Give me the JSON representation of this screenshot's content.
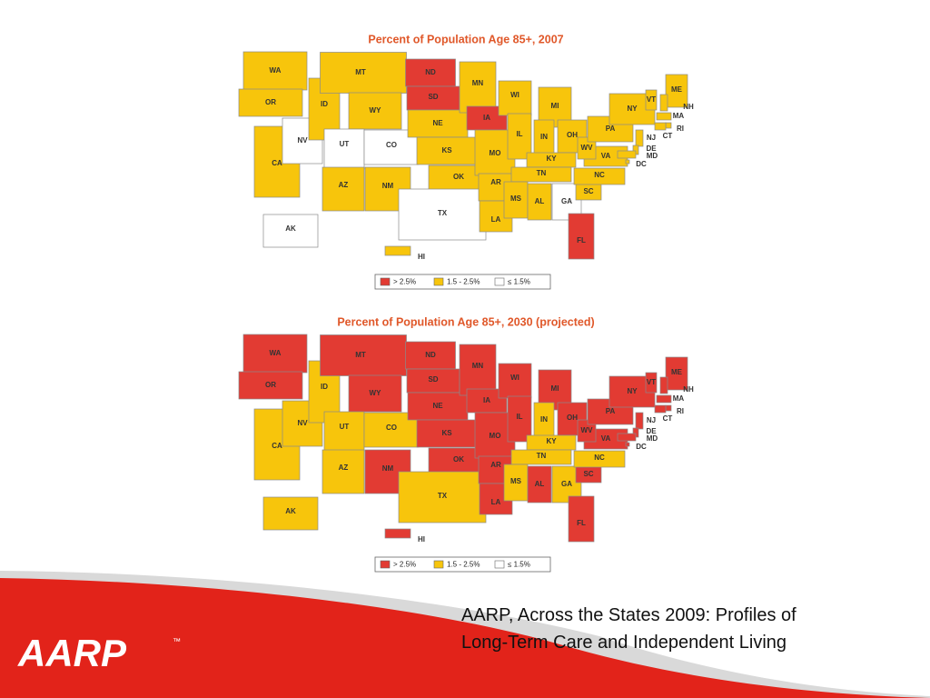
{
  "maps": [
    {
      "title": "Percent of Population Age 85+, 2007",
      "legend": [
        {
          "label": "> 2.5%",
          "color": "#e23b33"
        },
        {
          "label": "1.5 - 2.5%",
          "color": "#f7c50c"
        },
        {
          "label": "≤ 1.5%",
          "color": "#ffffff"
        }
      ],
      "states": [
        {
          "label": "WA",
          "color": "#f7c50c"
        },
        {
          "label": "OR",
          "color": "#f7c50c"
        },
        {
          "label": "CA",
          "color": "#f7c50c"
        },
        {
          "label": "NV",
          "color": "#ffffff"
        },
        {
          "label": "ID",
          "color": "#f7c50c"
        },
        {
          "label": "MT",
          "color": "#f7c50c"
        },
        {
          "label": "WY",
          "color": "#f7c50c"
        },
        {
          "label": "UT",
          "color": "#ffffff"
        },
        {
          "label": "CO",
          "color": "#ffffff"
        },
        {
          "label": "AZ",
          "color": "#f7c50c"
        },
        {
          "label": "NM",
          "color": "#f7c50c"
        },
        {
          "label": "ND",
          "color": "#e23b33"
        },
        {
          "label": "SD",
          "color": "#e23b33"
        },
        {
          "label": "NE",
          "color": "#f7c50c"
        },
        {
          "label": "KS",
          "color": "#f7c50c"
        },
        {
          "label": "OK",
          "color": "#f7c50c"
        },
        {
          "label": "TX",
          "color": "#ffffff"
        },
        {
          "label": "MN",
          "color": "#f7c50c"
        },
        {
          "label": "IA",
          "color": "#e23b33"
        },
        {
          "label": "MO",
          "color": "#f7c50c"
        },
        {
          "label": "AR",
          "color": "#f7c50c"
        },
        {
          "label": "LA",
          "color": "#f7c50c"
        },
        {
          "label": "WI",
          "color": "#f7c50c"
        },
        {
          "label": "IL",
          "color": "#f7c50c"
        },
        {
          "label": "MI",
          "color": "#f7c50c"
        },
        {
          "label": "IN",
          "color": "#f7c50c"
        },
        {
          "label": "OH",
          "color": "#f7c50c"
        },
        {
          "label": "KY",
          "color": "#f7c50c"
        },
        {
          "label": "TN",
          "color": "#f7c50c"
        },
        {
          "label": "MS",
          "color": "#f7c50c"
        },
        {
          "label": "AL",
          "color": "#f7c50c"
        },
        {
          "label": "GA",
          "color": "#ffffff"
        },
        {
          "label": "FL",
          "color": "#e23b33"
        },
        {
          "label": "SC",
          "color": "#f7c50c"
        },
        {
          "label": "NC",
          "color": "#f7c50c"
        },
        {
          "label": "VA",
          "color": "#f7c50c"
        },
        {
          "label": "WV",
          "color": "#f7c50c"
        },
        {
          "label": "PA",
          "color": "#f7c50c"
        },
        {
          "label": "NY",
          "color": "#f7c50c"
        },
        {
          "label": "VT",
          "color": "#f7c50c"
        },
        {
          "label": "ME",
          "color": "#f7c50c"
        },
        {
          "label": "NH",
          "color": "#f7c50c"
        },
        {
          "label": "MA",
          "color": "#f7c50c"
        },
        {
          "label": "RI",
          "color": "#f7c50c"
        },
        {
          "label": "CT",
          "color": "#f7c50c"
        },
        {
          "label": "NJ",
          "color": "#f7c50c"
        },
        {
          "label": "DE",
          "color": "#f7c50c"
        },
        {
          "label": "MD",
          "color": "#f7c50c"
        },
        {
          "label": "DC",
          "color": "#f7c50c"
        },
        {
          "label": "AK",
          "color": "#ffffff"
        },
        {
          "label": "HI",
          "color": "#f7c50c"
        }
      ]
    },
    {
      "title": "Percent of Population Age 85+, 2030 (projected)",
      "legend": [
        {
          "label": "> 2.5%",
          "color": "#e23b33"
        },
        {
          "label": "1.5 - 2.5%",
          "color": "#f7c50c"
        },
        {
          "label": "≤ 1.5%",
          "color": "#ffffff"
        }
      ],
      "states": [
        {
          "label": "WA",
          "color": "#e23b33"
        },
        {
          "label": "OR",
          "color": "#e23b33"
        },
        {
          "label": "CA",
          "color": "#f7c50c"
        },
        {
          "label": "NV",
          "color": "#f7c50c"
        },
        {
          "label": "ID",
          "color": "#f7c50c"
        },
        {
          "label": "MT",
          "color": "#e23b33"
        },
        {
          "label": "WY",
          "color": "#e23b33"
        },
        {
          "label": "UT",
          "color": "#f7c50c"
        },
        {
          "label": "CO",
          "color": "#f7c50c"
        },
        {
          "label": "AZ",
          "color": "#f7c50c"
        },
        {
          "label": "NM",
          "color": "#e23b33"
        },
        {
          "label": "ND",
          "color": "#e23b33"
        },
        {
          "label": "SD",
          "color": "#e23b33"
        },
        {
          "label": "NE",
          "color": "#e23b33"
        },
        {
          "label": "KS",
          "color": "#e23b33"
        },
        {
          "label": "OK",
          "color": "#e23b33"
        },
        {
          "label": "TX",
          "color": "#f7c50c"
        },
        {
          "label": "MN",
          "color": "#e23b33"
        },
        {
          "label": "IA",
          "color": "#e23b33"
        },
        {
          "label": "MO",
          "color": "#e23b33"
        },
        {
          "label": "AR",
          "color": "#e23b33"
        },
        {
          "label": "LA",
          "color": "#e23b33"
        },
        {
          "label": "WI",
          "color": "#e23b33"
        },
        {
          "label": "IL",
          "color": "#e23b33"
        },
        {
          "label": "MI",
          "color": "#e23b33"
        },
        {
          "label": "IN",
          "color": "#f7c50c"
        },
        {
          "label": "OH",
          "color": "#e23b33"
        },
        {
          "label": "KY",
          "color": "#f7c50c"
        },
        {
          "label": "TN",
          "color": "#f7c50c"
        },
        {
          "label": "MS",
          "color": "#f7c50c"
        },
        {
          "label": "AL",
          "color": "#e23b33"
        },
        {
          "label": "GA",
          "color": "#f7c50c"
        },
        {
          "label": "FL",
          "color": "#e23b33"
        },
        {
          "label": "SC",
          "color": "#e23b33"
        },
        {
          "label": "NC",
          "color": "#f7c50c"
        },
        {
          "label": "VA",
          "color": "#e23b33"
        },
        {
          "label": "WV",
          "color": "#e23b33"
        },
        {
          "label": "PA",
          "color": "#e23b33"
        },
        {
          "label": "NY",
          "color": "#e23b33"
        },
        {
          "label": "VT",
          "color": "#e23b33"
        },
        {
          "label": "ME",
          "color": "#e23b33"
        },
        {
          "label": "NH",
          "color": "#e23b33"
        },
        {
          "label": "MA",
          "color": "#e23b33"
        },
        {
          "label": "RI",
          "color": "#e23b33"
        },
        {
          "label": "CT",
          "color": "#e23b33"
        },
        {
          "label": "NJ",
          "color": "#e23b33"
        },
        {
          "label": "DE",
          "color": "#e23b33"
        },
        {
          "label": "MD",
          "color": "#e23b33"
        },
        {
          "label": "DC",
          "color": "#e23b33"
        },
        {
          "label": "AK",
          "color": "#f7c50c"
        },
        {
          "label": "HI",
          "color": "#e23b33"
        }
      ]
    }
  ],
  "footer": {
    "logo": "AARP",
    "trademark": "™",
    "caption": [
      "AARP, Across the States 2009: Profiles of",
      "Long-Term Care and Independent Living"
    ]
  }
}
